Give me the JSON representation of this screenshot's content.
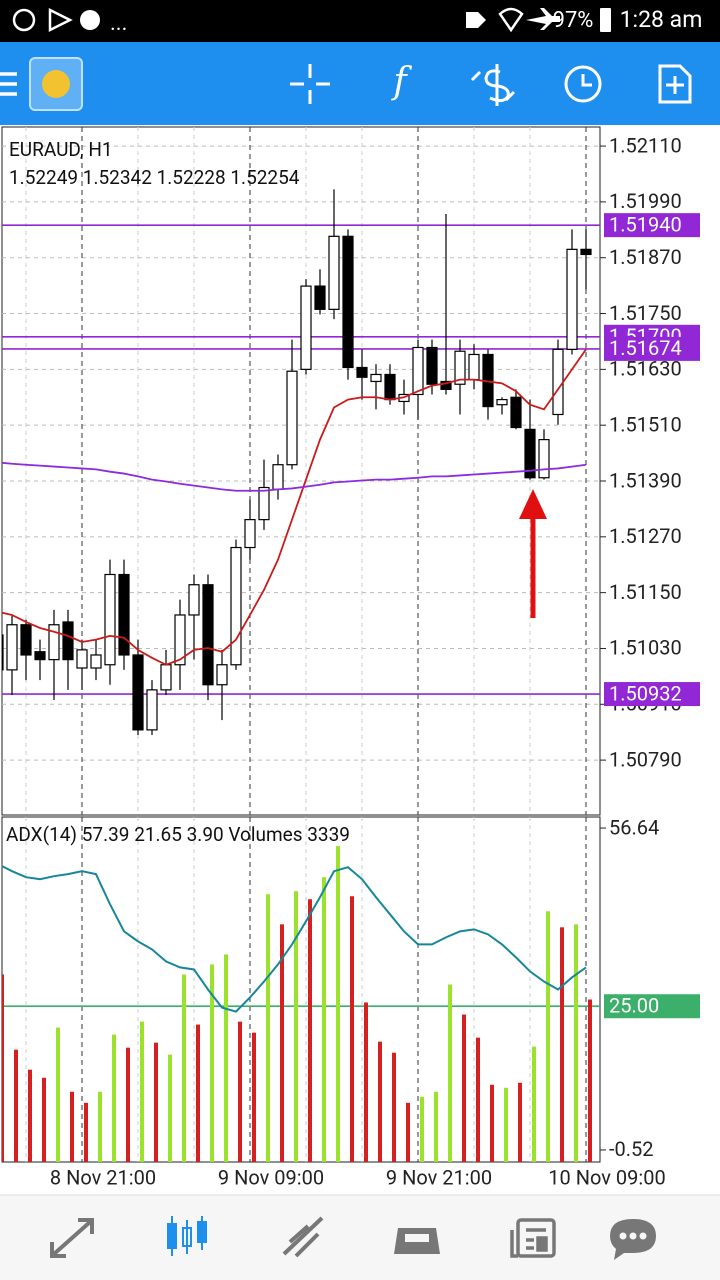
{
  "status_bar": {
    "more": "...",
    "battery": "97%",
    "time": "1:28 am"
  },
  "toolbar": {
    "function_label": "f"
  },
  "chart_data": [
    {
      "type": "candlestick",
      "title": "EURAUD, H1",
      "subtitle": "1.52249 1.52342 1.52228 1.52254",
      "open": [
        1.51059,
        1.50984,
        1.51081,
        1.51023,
        1.51006,
        1.51087,
        1.50988,
        1.50988,
        1.50995,
        1.51189,
        1.51016,
        1.50855,
        1.50941,
        1.50995,
        1.51102,
        1.51167,
        1.50952,
        1.50995,
        1.51247,
        1.51307,
        1.51372,
        1.51425,
        1.5163,
        1.51809,
        1.51759,
        1.51916,
        1.51634,
        1.51604,
        1.51619,
        1.51561,
        1.51576,
        1.51677,
        1.51604,
        1.51598,
        1.51608,
        1.51662,
        1.51554,
        1.5157,
        1.51501,
        1.51397,
        1.51533,
        1.51673,
        1.51888
      ],
      "high": [
        1.51092,
        1.51102,
        1.51092,
        1.51049,
        1.51113,
        1.51113,
        1.51049,
        1.51049,
        1.51221,
        1.51221,
        1.51049,
        1.50962,
        1.51027,
        1.51135,
        1.51189,
        1.51189,
        1.51027,
        1.51264,
        1.5135,
        1.51436,
        1.51447,
        1.51694,
        1.51824,
        1.51845,
        1.52017,
        1.51931,
        1.51673,
        1.51641,
        1.51641,
        1.51608,
        1.51694,
        1.51694,
        1.51964,
        1.51694,
        1.51684,
        1.51673,
        1.5157,
        1.51587,
        1.51565,
        1.51501,
        1.51694,
        1.51931,
        1.51931
      ],
      "low": [
        1.50962,
        1.5093,
        1.50962,
        1.50962,
        1.50919,
        1.50941,
        1.50941,
        1.50962,
        1.50952,
        1.50984,
        1.50844,
        1.50844,
        1.5093,
        1.50941,
        1.51006,
        1.50919,
        1.50876,
        1.50984,
        1.51221,
        1.51285,
        1.5135,
        1.51415,
        1.51619,
        1.51748,
        1.51738,
        1.51608,
        1.51565,
        1.51544,
        1.51554,
        1.51533,
        1.51522,
        1.51576,
        1.51576,
        1.51533,
        1.51587,
        1.51522,
        1.51533,
        1.51501,
        1.51393,
        1.51393,
        1.51511,
        1.51662,
        1.51802
      ],
      "close": [
        1.50984,
        1.51081,
        1.51016,
        1.51006,
        1.51081,
        1.51006,
        1.51027,
        1.51016,
        1.51189,
        1.51016,
        1.50855,
        1.50941,
        1.50995,
        1.51102,
        1.51167,
        1.50952,
        1.50995,
        1.51247,
        1.51307,
        1.51376,
        1.51425,
        1.51626,
        1.51809,
        1.51759,
        1.51916,
        1.51634,
        1.51613,
        1.51619,
        1.51565,
        1.51576,
        1.51677,
        1.51598,
        1.51587,
        1.51669,
        1.51662,
        1.5155,
        1.51565,
        1.51505,
        1.51397,
        1.51479,
        1.51673,
        1.51888,
        1.51877
      ],
      "up_color": "#ffffff",
      "down_color": "#000000",
      "series": [
        {
          "color": "#cc1a1a",
          "values": [
            1.51109,
            1.51102,
            1.51087,
            1.51074,
            1.51066,
            1.51057,
            1.51044,
            1.51049,
            1.51057,
            1.51053,
            1.51027,
            1.5101,
            1.50995,
            1.51006,
            1.51027,
            1.51031,
            1.51023,
            1.51049,
            1.51102,
            1.51156,
            1.51221,
            1.51307,
            1.51393,
            1.51479,
            1.51548,
            1.51565,
            1.5157,
            1.5157,
            1.51565,
            1.5157,
            1.51583,
            1.51595,
            1.516,
            1.51608,
            1.51608,
            1.51604,
            1.516,
            1.51583,
            1.51554,
            1.51544,
            1.51587,
            1.5163,
            1.51673
          ]
        },
        {
          "color": "#8b2be0",
          "values": [
            1.5143,
            1.51427,
            1.51425,
            1.51423,
            1.51421,
            1.51419,
            1.51417,
            1.51415,
            1.5141,
            1.51406,
            1.514,
            1.51393,
            1.51389,
            1.51384,
            1.5138,
            1.51376,
            1.51372,
            1.51369,
            1.51369,
            1.51369,
            1.51372,
            1.51374,
            1.51378,
            1.51382,
            1.51387,
            1.51389,
            1.51391,
            1.51393,
            1.51393,
            1.51395,
            1.51397,
            1.514,
            1.514,
            1.51402,
            1.51404,
            1.51406,
            1.51408,
            1.5141,
            1.51412,
            1.51415,
            1.51417,
            1.51421,
            1.51425
          ]
        }
      ],
      "levels": [
        {
          "value": 1.5194,
          "label": "1.51940"
        },
        {
          "value": 1.517,
          "label": "1.51700"
        },
        {
          "value": 1.51674,
          "label": "1.51674"
        },
        {
          "value": 1.50932,
          "label": "1.50932"
        }
      ],
      "level_color": "#9227d6",
      "ylim": [
        1.50672,
        1.52151
      ],
      "yticks": [
        {
          "value": 1.5211,
          "label": "1.52110"
        },
        {
          "value": 1.5199,
          "label": "1.51990"
        },
        {
          "value": 1.5187,
          "label": "1.51870"
        },
        {
          "value": 1.5175,
          "label": "1.51750"
        },
        {
          "value": 1.5163,
          "label": "1.51630"
        },
        {
          "value": 1.5151,
          "label": "1.51510"
        },
        {
          "value": 1.5139,
          "label": "1.51390"
        },
        {
          "value": 1.5127,
          "label": "1.51270"
        },
        {
          "value": 1.5115,
          "label": "1.51150"
        },
        {
          "value": 1.5103,
          "label": "1.51030"
        },
        {
          "value": 1.5091,
          "label": "1.50910"
        },
        {
          "value": 1.5079,
          "label": "1.50790"
        }
      ],
      "grid": true
    },
    {
      "type": "indicator",
      "title": "ADX(14) 57.39 21.65 3.90 Volumes 3339",
      "categories": [
        null,
        null,
        null,
        null,
        null,
        null,
        "8 Nov 21:00",
        null,
        null,
        null,
        null,
        null,
        null,
        null,
        null,
        null,
        null,
        null,
        "9 Nov 09:00",
        null,
        null,
        null,
        null,
        null,
        null,
        null,
        null,
        null,
        null,
        null,
        "9 Nov 21:00",
        null,
        null,
        null,
        null,
        null,
        null,
        null,
        null,
        null,
        null,
        null,
        "10 Nov 09:00"
      ],
      "series": [
        {
          "type": "bar",
          "colors": [
            "#d42020",
            "#d42020",
            "#d42020",
            "#d42020",
            "#9be22d",
            "#d42020",
            "#d42020",
            "#9be22d",
            "#9be22d",
            "#d42020",
            "#9be22d",
            "#d42020",
            "#9be22d",
            "#9be22d",
            "#d42020",
            "#9be22d",
            "#9be22d",
            "#d42020",
            "#d42020",
            "#9be22d",
            "#d42020",
            "#9be22d",
            "#d42020",
            "#9be22d",
            "#9be22d",
            "#d42020",
            "#d42020",
            "#d42020",
            "#d42020",
            "#d42020",
            "#9be22d",
            "#9be22d",
            "#9be22d",
            "#d42020",
            "#d42020",
            "#d42020",
            "#9be22d",
            "#d42020",
            "#9be22d",
            "#9be22d",
            "#d42020",
            "#9be22d",
            "#d42020"
          ],
          "values": [
            30.64,
            17.29,
            13.73,
            12.3,
            21.2,
            9.81,
            7.85,
            9.81,
            19.96,
            17.64,
            22.27,
            18.53,
            16.4,
            30.64,
            21.74,
            32.42,
            34.2,
            22.27,
            20.31,
            44.89,
            39.54,
            45.42,
            44,
            47.91,
            53.43,
            44.53,
            25.66,
            18.71,
            16.75,
            7.85,
            8.92,
            9.81,
            28.86,
            23.52,
            19.42,
            11.05,
            10.52,
            11.41,
            17.82,
            41.86,
            39.01,
            39.54,
            26.19
          ]
        },
        {
          "type": "line",
          "color": "#16879a",
          "values": [
            50.23,
            48.98,
            47.91,
            47.56,
            48.09,
            48.45,
            48.98,
            48.45,
            43.11,
            38.3,
            36.52,
            35.09,
            32.96,
            31.89,
            31.53,
            27.97,
            24.76,
            24.05,
            26.55,
            29.39,
            32.42,
            35.98,
            40.08,
            44.35,
            48.98,
            49.69,
            47.56,
            44.35,
            41.32,
            38.3,
            35.98,
            35.98,
            37.23,
            38.3,
            38.65,
            37.76,
            35.98,
            33.67,
            31.18,
            29.39,
            27.97,
            30.11,
            31.89
          ]
        }
      ],
      "levels": [
        {
          "value": 25,
          "label": "25.00"
        }
      ],
      "level_color": "#3cb06a",
      "ylim": [
        -2.66,
        58.6
      ],
      "yticks": [
        56.64,
        -0.52
      ],
      "grid": true
    }
  ]
}
